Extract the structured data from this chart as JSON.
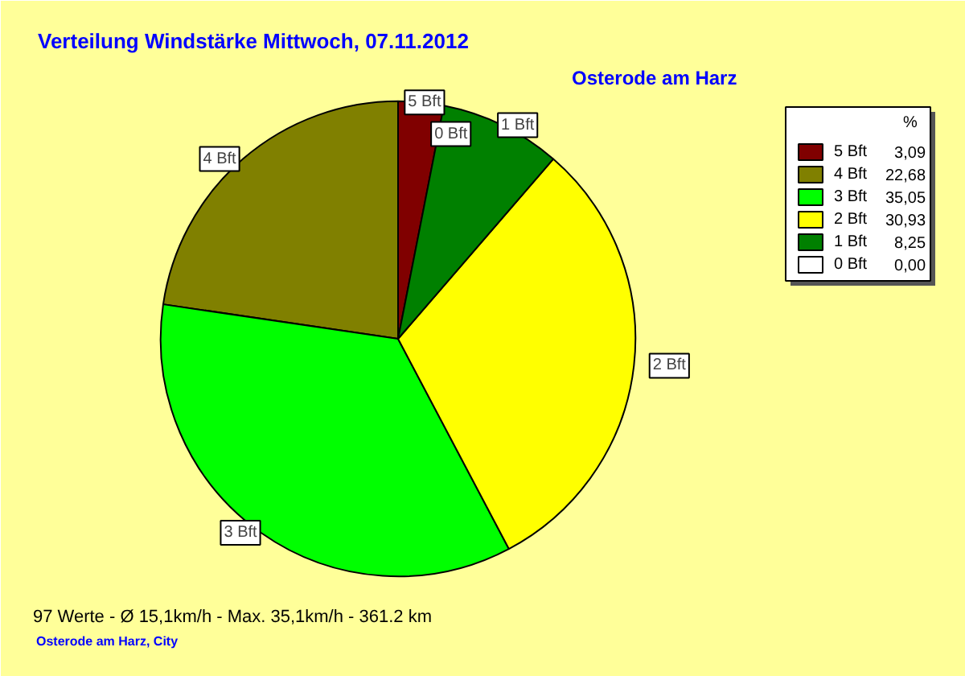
{
  "chart_data": {
    "type": "pie",
    "title": "Verteilung Windstärke  Mittwoch, 07.11.2012",
    "subtitle": "Osterode am Harz",
    "categories": [
      "5 Bft",
      "4 Bft",
      "3 Bft",
      "2 Bft",
      "1 Bft",
      "0 Bft"
    ],
    "values": [
      3.09,
      22.68,
      35.05,
      30.93,
      8.25,
      0.0
    ],
    "value_labels": [
      "3,09",
      "22,68",
      "35,05",
      "30,93",
      "8,25",
      "0,00"
    ],
    "colors": [
      "#800000",
      "#808000",
      "#00ff00",
      "#ffff00",
      "#008000",
      "#ffffff"
    ],
    "legend": "top right",
    "legend_title": "%",
    "annotations": [
      "97 Werte   -   Ø 15,1km/h  -  Max. 35,1km/h   -   361.2 km",
      "Osterode am Harz, City"
    ]
  }
}
